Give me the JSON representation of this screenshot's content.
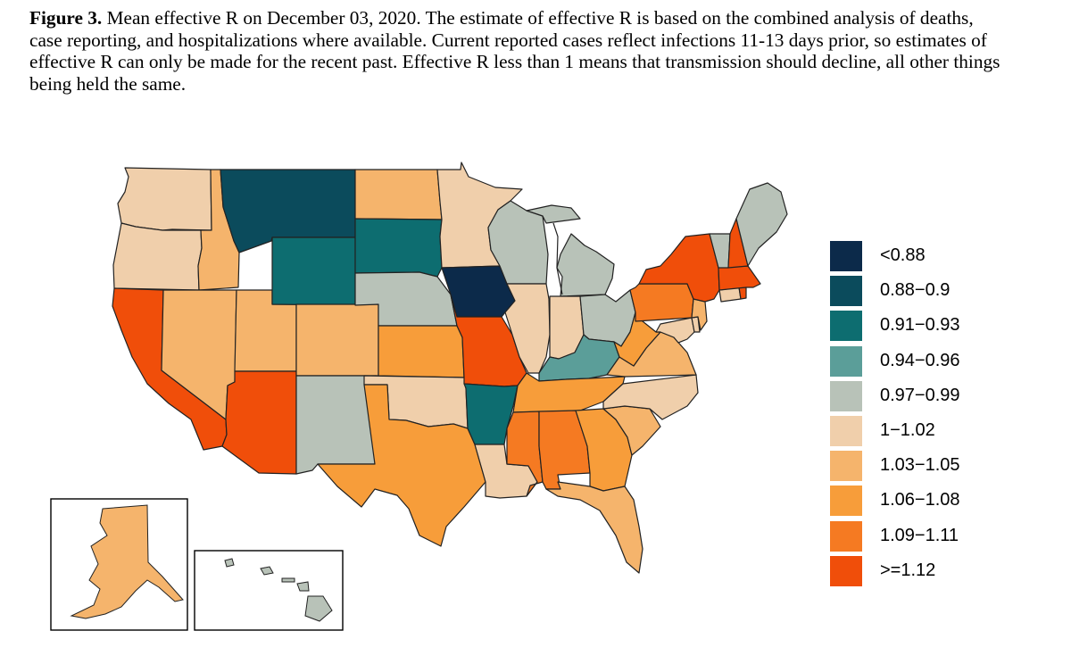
{
  "caption": {
    "label": "Figure 3.",
    "text": "Mean effective R on December 03, 2020. The estimate of effective R is based on the combined analysis of deaths, case reporting, and hospitalizations where available. Current reported cases reflect infections 11-13 days prior, so estimates of effective R can only be made for the recent past. Effective R less than 1 means that transmission should decline, all other things being held the same."
  },
  "legend": {
    "items": [
      {
        "label": "<0.88",
        "color": "#0c2a4a"
      },
      {
        "label": "0.88−0.9",
        "color": "#0b4b5c"
      },
      {
        "label": "0.91−0.93",
        "color": "#0d6d70"
      },
      {
        "label": "0.94−0.96",
        "color": "#5b9e99"
      },
      {
        "label": "0.97−0.99",
        "color": "#b8c2b8"
      },
      {
        "label": "1−1.02",
        "color": "#f0cfab"
      },
      {
        "label": "1.03−1.05",
        "color": "#f5b46c"
      },
      {
        "label": "1.06−1.08",
        "color": "#f79d3a"
      },
      {
        "label": "1.09−1.11",
        "color": "#f57a22"
      },
      {
        "label": ">=1.12",
        "color": "#f04e0a"
      }
    ]
  },
  "states": [
    {
      "code": "WA",
      "bin": 5
    },
    {
      "code": "OR",
      "bin": 5
    },
    {
      "code": "CA",
      "bin": 9
    },
    {
      "code": "ID",
      "bin": 6
    },
    {
      "code": "NV",
      "bin": 6
    },
    {
      "code": "UT",
      "bin": 6
    },
    {
      "code": "AZ",
      "bin": 9
    },
    {
      "code": "MT",
      "bin": 1
    },
    {
      "code": "WY",
      "bin": 2
    },
    {
      "code": "CO",
      "bin": 6
    },
    {
      "code": "NM",
      "bin": 4
    },
    {
      "code": "ND",
      "bin": 6
    },
    {
      "code": "SD",
      "bin": 2
    },
    {
      "code": "NE",
      "bin": 4
    },
    {
      "code": "KS",
      "bin": 7
    },
    {
      "code": "OK",
      "bin": 5
    },
    {
      "code": "TX",
      "bin": 7
    },
    {
      "code": "MN",
      "bin": 5
    },
    {
      "code": "IA",
      "bin": 0
    },
    {
      "code": "MO",
      "bin": 9
    },
    {
      "code": "AR",
      "bin": 2
    },
    {
      "code": "LA",
      "bin": 5
    },
    {
      "code": "WI",
      "bin": 4
    },
    {
      "code": "IL",
      "bin": 5
    },
    {
      "code": "MI",
      "bin": 4
    },
    {
      "code": "IN",
      "bin": 5
    },
    {
      "code": "OH",
      "bin": 4
    },
    {
      "code": "KY",
      "bin": 3
    },
    {
      "code": "TN",
      "bin": 7
    },
    {
      "code": "MS",
      "bin": 8
    },
    {
      "code": "AL",
      "bin": 8
    },
    {
      "code": "GA",
      "bin": 7
    },
    {
      "code": "FL",
      "bin": 6
    },
    {
      "code": "SC",
      "bin": 6
    },
    {
      "code": "NC",
      "bin": 5
    },
    {
      "code": "VA",
      "bin": 6
    },
    {
      "code": "WV",
      "bin": 7
    },
    {
      "code": "PA",
      "bin": 8
    },
    {
      "code": "NY",
      "bin": 9
    },
    {
      "code": "VT",
      "bin": 4
    },
    {
      "code": "NH",
      "bin": 9
    },
    {
      "code": "ME",
      "bin": 4
    },
    {
      "code": "MA",
      "bin": 9
    },
    {
      "code": "CT",
      "bin": 5
    },
    {
      "code": "RI",
      "bin": 9
    },
    {
      "code": "NJ",
      "bin": 6
    },
    {
      "code": "DE",
      "bin": 5
    },
    {
      "code": "MD",
      "bin": 5
    },
    {
      "code": "AK",
      "bin": 6
    },
    {
      "code": "HI",
      "bin": 4
    }
  ]
}
